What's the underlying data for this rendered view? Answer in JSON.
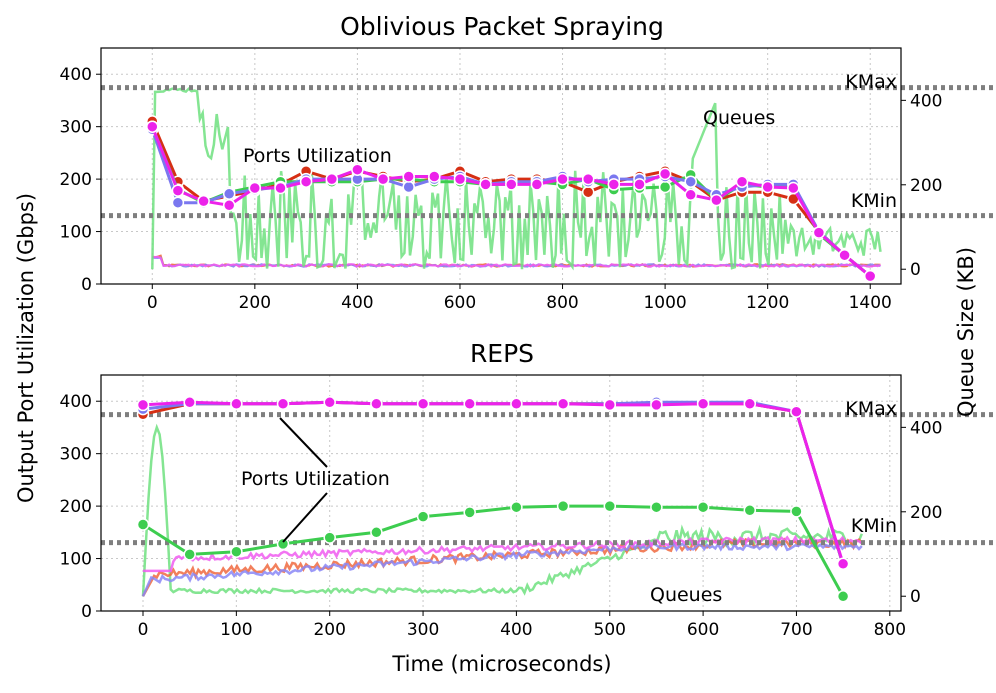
{
  "figure": {
    "ylabel_left": "Output Port Utilization (Gbps)",
    "ylabel_right": "Queue Size (KB)",
    "xlabel": "Time (microseconds)"
  },
  "chart_data": [
    {
      "type": "line",
      "title": "Oblivious Packet Spraying",
      "xlim": [
        -100,
        1460
      ],
      "ylim": [
        0,
        450
      ],
      "ylim_right": [
        -35,
        524
      ],
      "x_ticks": [
        0,
        200,
        400,
        600,
        800,
        1000,
        1200,
        1400
      ],
      "y_ticks": [
        0,
        100,
        200,
        300,
        400
      ],
      "y_right_ticks": [
        0,
        200,
        400
      ],
      "thresholds": [
        {
          "label": "KMax",
          "y": 430
        },
        {
          "label": "KMin",
          "y": 127
        }
      ],
      "annotations": {
        "ports": "Ports Utilization",
        "queues": "Queues"
      },
      "series": [
        {
          "name": "port-red",
          "color": "#d62f14",
          "x": [
            0,
            50,
            100,
            150,
            200,
            250,
            300,
            350,
            400,
            450,
            500,
            550,
            600,
            650,
            700,
            750,
            800,
            850,
            900,
            950,
            1000,
            1050,
            1100,
            1150,
            1200,
            1250,
            1300,
            1350,
            1400
          ],
          "values": [
            310,
            195,
            158,
            168,
            178,
            190,
            215,
            200,
            215,
            205,
            195,
            200,
            215,
            195,
            200,
            200,
            195,
            175,
            195,
            205,
            215,
            195,
            160,
            175,
            175,
            162,
            100,
            55,
            15
          ]
        },
        {
          "name": "port-green",
          "color": "#3dcd4f",
          "x": [
            0,
            50,
            100,
            150,
            200,
            250,
            300,
            350,
            400,
            450,
            500,
            550,
            600,
            650,
            700,
            750,
            800,
            850,
            900,
            950,
            1000,
            1050,
            1100,
            1150,
            1200,
            1250,
            1300,
            1350,
            1400
          ],
          "values": [
            300,
            180,
            155,
            175,
            185,
            195,
            195,
            195,
            195,
            200,
            200,
            195,
            195,
            190,
            190,
            195,
            190,
            200,
            180,
            183,
            185,
            208,
            160,
            190,
            185,
            188,
            95,
            55,
            15
          ]
        },
        {
          "name": "port-blue",
          "color": "#7a77ef",
          "x": [
            0,
            50,
            100,
            150,
            200,
            250,
            300,
            350,
            400,
            450,
            500,
            550,
            600,
            650,
            700,
            750,
            800,
            850,
            900,
            950,
            1000,
            1050,
            1100,
            1150,
            1200,
            1250,
            1300,
            1350,
            1400
          ],
          "values": [
            295,
            155,
            155,
            172,
            180,
            185,
            200,
            200,
            200,
            200,
            185,
            200,
            205,
            190,
            195,
            195,
            205,
            195,
            200,
            200,
            205,
            195,
            170,
            185,
            190,
            190,
            100,
            55,
            15
          ]
        },
        {
          "name": "port-magenta",
          "color": "#ec22ea",
          "x": [
            0,
            50,
            100,
            150,
            200,
            250,
            300,
            350,
            400,
            450,
            500,
            550,
            600,
            650,
            700,
            750,
            800,
            850,
            900,
            950,
            1000,
            1050,
            1100,
            1150,
            1200,
            1250,
            1300,
            1350,
            1400
          ],
          "values": [
            300,
            178,
            158,
            150,
            183,
            183,
            195,
            200,
            218,
            200,
            205,
            205,
            200,
            190,
            190,
            190,
            200,
            200,
            190,
            190,
            210,
            170,
            160,
            195,
            185,
            183,
            98,
            55,
            15
          ]
        }
      ]
    },
    {
      "type": "line",
      "title": "REPS",
      "xlim": [
        -45,
        812
      ],
      "ylim": [
        0,
        450
      ],
      "ylim_right": [
        -35,
        524
      ],
      "x_ticks": [
        0,
        100,
        200,
        300,
        400,
        500,
        600,
        700,
        800
      ],
      "y_ticks": [
        0,
        100,
        200,
        300,
        400
      ],
      "y_right_ticks": [
        0,
        200,
        400
      ],
      "thresholds": [
        {
          "label": "KMax",
          "y": 430
        },
        {
          "label": "KMin",
          "y": 127
        }
      ],
      "annotations": {
        "ports": "Ports Utilization",
        "queues": "Queues"
      },
      "series": [
        {
          "name": "port-green",
          "color": "#3dcd4f",
          "x": [
            0,
            50,
            100,
            150,
            200,
            250,
            300,
            350,
            400,
            450,
            500,
            550,
            600,
            650,
            700,
            750
          ],
          "values": [
            165,
            108,
            113,
            128,
            140,
            150,
            180,
            188,
            198,
            200,
            200,
            198,
            198,
            192,
            190,
            28
          ]
        },
        {
          "name": "port-red",
          "color": "#d62f14",
          "x": [
            0,
            50,
            100,
            150,
            200,
            250,
            300,
            350,
            400,
            450,
            500,
            550,
            600,
            650,
            700,
            750
          ],
          "values": [
            375,
            395,
            395,
            395,
            398,
            395,
            395,
            395,
            395,
            395,
            395,
            395,
            395,
            395,
            380,
            88
          ]
        },
        {
          "name": "port-blue",
          "color": "#7a77ef",
          "x": [
            0,
            50,
            100,
            150,
            200,
            250,
            300,
            350,
            400,
            450,
            500,
            550,
            600,
            650,
            700,
            750
          ],
          "values": [
            385,
            395,
            395,
            395,
            398,
            395,
            395,
            395,
            395,
            395,
            395,
            398,
            398,
            398,
            380,
            88
          ]
        },
        {
          "name": "port-magenta",
          "color": "#ec22ea",
          "x": [
            0,
            50,
            100,
            150,
            200,
            250,
            300,
            350,
            400,
            450,
            500,
            550,
            600,
            650,
            700,
            750
          ],
          "values": [
            393,
            398,
            395,
            395,
            398,
            395,
            395,
            395,
            395,
            395,
            393,
            393,
            395,
            395,
            380,
            90
          ]
        }
      ]
    }
  ]
}
